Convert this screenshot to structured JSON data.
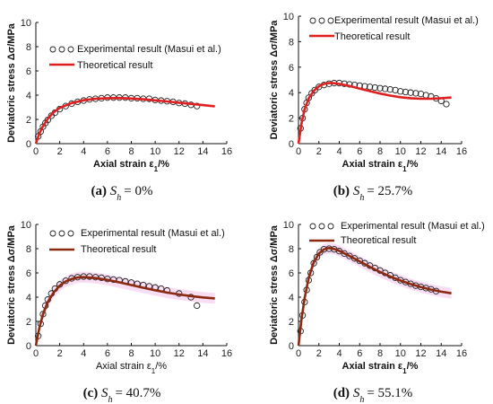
{
  "chart_data": [
    {
      "type": "line",
      "caption_letter": "(a)",
      "caption_text": "S",
      "caption_sub": "h",
      "caption_value": "= 0%",
      "xlabel": "Axial strain ε",
      "xlabel_sub": "1",
      "xlabel_unit": "/%",
      "ylabel": "Deviatoric stress Δσ/MPa",
      "xlim": [
        0,
        16
      ],
      "ylim": [
        0,
        10
      ],
      "xticks": [
        0,
        2,
        4,
        6,
        8,
        10,
        12,
        14,
        16
      ],
      "yticks": [
        0,
        2,
        4,
        6,
        8,
        10
      ],
      "legend_position": "top-left",
      "series": [
        {
          "name": "Experimental result (Masui et al.)",
          "marker": "circle",
          "x": [
            0.2,
            0.4,
            0.6,
            0.8,
            1.0,
            1.3,
            1.6,
            2.0,
            2.5,
            3.0,
            3.5,
            4.0,
            4.5,
            5.0,
            5.5,
            6.0,
            6.5,
            7.0,
            7.5,
            8.0,
            8.5,
            9.0,
            9.5,
            10.0,
            10.5,
            11.0,
            11.5,
            12.0,
            12.5,
            13.0,
            13.5
          ],
          "y": [
            0.6,
            1.0,
            1.4,
            1.7,
            1.95,
            2.3,
            2.55,
            2.85,
            3.1,
            3.3,
            3.45,
            3.55,
            3.65,
            3.7,
            3.75,
            3.8,
            3.8,
            3.8,
            3.8,
            3.75,
            3.75,
            3.7,
            3.7,
            3.6,
            3.55,
            3.5,
            3.45,
            3.35,
            3.3,
            3.2,
            3.1
          ]
        },
        {
          "name": "Theoretical result",
          "color": "#e02020",
          "x": [
            0,
            0.3,
            0.6,
            1,
            1.5,
            2,
            3,
            4,
            5,
            6,
            7,
            8,
            9,
            10,
            11,
            12,
            13,
            14,
            15
          ],
          "y": [
            0,
            0.85,
            1.45,
            2.05,
            2.6,
            2.95,
            3.35,
            3.58,
            3.7,
            3.75,
            3.76,
            3.72,
            3.66,
            3.57,
            3.48,
            3.38,
            3.28,
            3.18,
            3.08
          ]
        }
      ]
    },
    {
      "type": "line",
      "caption_letter": "(b)",
      "caption_text": "S",
      "caption_sub": "h",
      "caption_value": "= 25.7%",
      "xlabel": "Axial strain ε",
      "xlabel_sub": "1",
      "xlabel_unit": "/%",
      "ylabel": "Deviatoric stress Δσ/MPa",
      "xlim": [
        0,
        16
      ],
      "ylim": [
        0,
        10
      ],
      "xticks": [
        0,
        2,
        4,
        6,
        8,
        10,
        12,
        14,
        16
      ],
      "yticks": [
        0,
        2,
        4,
        6,
        8,
        10
      ],
      "legend_position": "top-right",
      "series": [
        {
          "name": "Experimental result (Masui et al.)",
          "marker": "circle",
          "x": [
            0.2,
            0.4,
            0.6,
            0.8,
            1.0,
            1.3,
            1.6,
            2.0,
            2.5,
            3.0,
            3.5,
            4.0,
            4.5,
            5.0,
            5.5,
            6.0,
            6.5,
            7.0,
            7.5,
            8.0,
            8.5,
            9.0,
            9.5,
            10.0,
            10.5,
            11.0,
            11.5,
            12.0,
            12.5,
            13.0,
            13.5,
            14.0,
            14.5
          ],
          "y": [
            1.2,
            2.0,
            2.7,
            3.2,
            3.6,
            3.95,
            4.2,
            4.45,
            4.6,
            4.7,
            4.75,
            4.75,
            4.7,
            4.65,
            4.6,
            4.55,
            4.5,
            4.45,
            4.4,
            4.35,
            4.3,
            4.25,
            4.2,
            4.1,
            4.05,
            4.0,
            3.95,
            3.9,
            3.8,
            3.7,
            3.55,
            3.35,
            3.1
          ]
        },
        {
          "name": "Theoretical result",
          "color": "#e02020",
          "x": [
            0,
            0.3,
            0.6,
            1,
            1.5,
            2,
            2.5,
            3,
            3.5,
            4,
            5,
            6,
            7,
            8,
            9,
            10,
            11,
            12,
            13,
            14,
            15
          ],
          "y": [
            0,
            1.6,
            2.7,
            3.55,
            4.15,
            4.5,
            4.68,
            4.75,
            4.74,
            4.68,
            4.52,
            4.32,
            4.12,
            3.93,
            3.77,
            3.64,
            3.56,
            3.52,
            3.52,
            3.56,
            3.62
          ]
        }
      ]
    },
    {
      "type": "line",
      "caption_letter": "(c)",
      "caption_text": "S",
      "caption_sub": "h",
      "caption_value": "= 40.7%",
      "xlabel": "Axial strain ε",
      "xlabel_sub": "1",
      "xlabel_unit": "/%",
      "ylabel": "Deviatoric stress Δσ/MPa",
      "xlim": [
        0,
        16
      ],
      "ylim": [
        0,
        10
      ],
      "xticks": [
        0,
        2,
        4,
        6,
        8,
        10,
        12,
        14,
        16
      ],
      "yticks": [
        0,
        2,
        4,
        6,
        8,
        10
      ],
      "legend_position": "top-right",
      "series": [
        {
          "name": "Experimental result (Masui et al.)",
          "marker": "circle",
          "x": [
            0.2,
            0.4,
            0.6,
            0.8,
            1.0,
            1.3,
            1.6,
            2.0,
            2.5,
            3.0,
            3.5,
            4.0,
            4.5,
            5.0,
            5.5,
            6.0,
            6.5,
            7.0,
            7.5,
            8.0,
            8.5,
            9.0,
            9.5,
            10.0,
            10.5,
            11.0,
            12.0,
            13.0,
            13.5
          ],
          "y": [
            0.8,
            1.8,
            2.6,
            3.3,
            3.8,
            4.3,
            4.7,
            5.05,
            5.35,
            5.55,
            5.65,
            5.7,
            5.7,
            5.65,
            5.6,
            5.5,
            5.45,
            5.4,
            5.3,
            5.2,
            5.1,
            5.0,
            4.9,
            4.8,
            4.7,
            4.55,
            4.3,
            4.0,
            3.3
          ]
        },
        {
          "name": "Theoretical result",
          "color": "#8b2a10",
          "x": [
            0,
            0.3,
            0.6,
            1,
            1.5,
            2,
            2.5,
            3,
            3.5,
            4,
            5,
            6,
            7,
            8,
            9,
            10,
            11,
            12,
            13,
            14,
            15
          ],
          "y": [
            0,
            1.5,
            2.6,
            3.6,
            4.4,
            4.95,
            5.3,
            5.5,
            5.62,
            5.65,
            5.58,
            5.42,
            5.22,
            5.0,
            4.78,
            4.57,
            4.38,
            4.22,
            4.09,
            3.98,
            3.9
          ]
        }
      ]
    },
    {
      "type": "line",
      "caption_letter": "(d)",
      "caption_text": "S",
      "caption_sub": "h",
      "caption_value": "= 55.1%",
      "xlabel": "Axial strain ε",
      "xlabel_sub": "1",
      "xlabel_unit": "/%",
      "ylabel": "Deviatoric stress Δσ/MPa",
      "xlim": [
        0,
        16
      ],
      "ylim": [
        0,
        10
      ],
      "xticks": [
        0,
        2,
        4,
        6,
        8,
        10,
        12,
        14,
        16
      ],
      "yticks": [
        0,
        2,
        4,
        6,
        8,
        10
      ],
      "legend_position": "top-right",
      "series": [
        {
          "name": "Experimental result (Masui et al.)",
          "marker": "circle",
          "x": [
            0.2,
            0.4,
            0.6,
            0.8,
            1.0,
            1.2,
            1.5,
            1.8,
            2.1,
            2.5,
            3.0,
            3.5,
            4.0,
            4.5,
            5.0,
            5.5,
            6.0,
            6.5,
            7.0,
            7.5,
            8.0,
            8.5,
            9.0,
            9.5,
            10.0,
            10.5,
            11.0,
            11.5,
            12.0,
            12.5,
            13.0,
            13.5
          ],
          "y": [
            1.2,
            2.5,
            3.6,
            4.6,
            5.4,
            6.0,
            6.8,
            7.3,
            7.7,
            7.95,
            8.0,
            7.95,
            7.8,
            7.6,
            7.4,
            7.2,
            7.0,
            6.8,
            6.6,
            6.4,
            6.2,
            6.0,
            5.8,
            5.6,
            5.4,
            5.25,
            5.1,
            4.95,
            4.85,
            4.75,
            4.65,
            4.5
          ]
        },
        {
          "name": "Theoretical result",
          "color": "#8b2a10",
          "x": [
            0,
            0.3,
            0.6,
            1,
            1.5,
            2,
            2.5,
            3,
            3.5,
            4,
            5,
            6,
            7,
            8,
            9,
            10,
            11,
            12,
            13,
            14,
            15
          ],
          "y": [
            0,
            2.2,
            3.9,
            5.6,
            6.9,
            7.6,
            7.95,
            8.05,
            7.98,
            7.82,
            7.4,
            6.95,
            6.5,
            6.08,
            5.7,
            5.37,
            5.08,
            4.83,
            4.62,
            4.45,
            4.32
          ]
        }
      ]
    }
  ]
}
